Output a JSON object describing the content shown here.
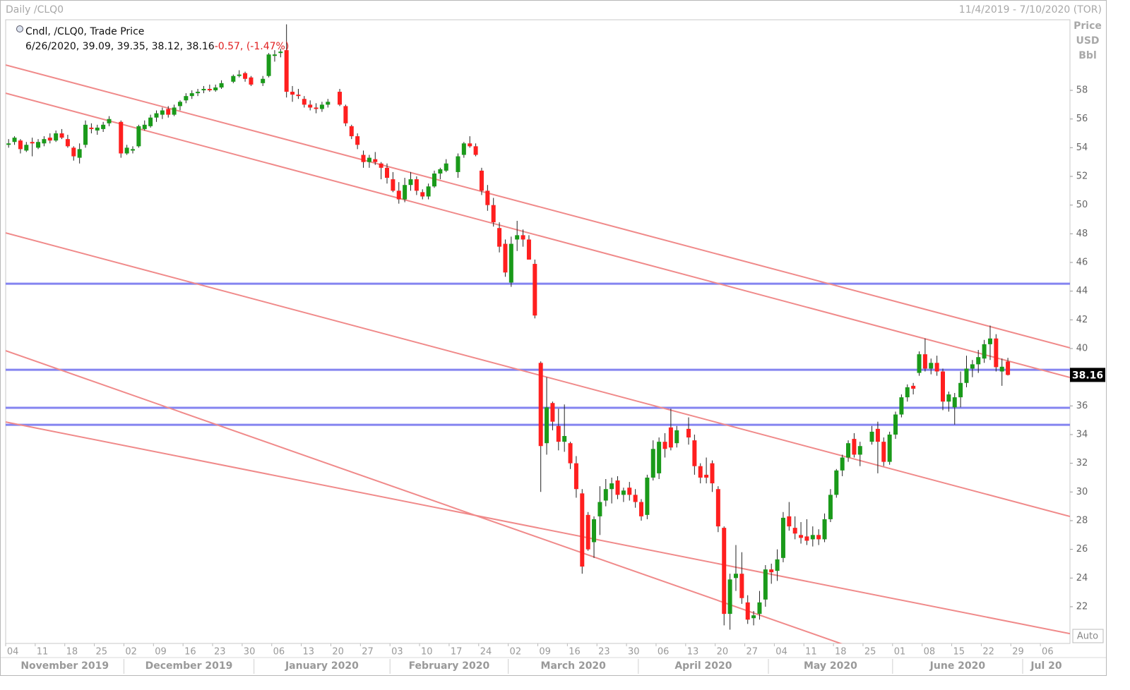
{
  "chart_data": {
    "type": "candlestick",
    "title": "Daily /CLQ0",
    "date_range": "11/4/2019 - 7/10/2020 (TOR)",
    "legend_title": "Cndl, /CLQ0, Trade Price",
    "legend_line": "6/26/2020, 39.09, 39.35, 38.12, 38.16",
    "change_label": "-0.57, (-1.47%)",
    "axis_label": [
      "Price",
      "USD",
      "Bbl"
    ],
    "auto_button": "Auto",
    "up_color": "#1a9a1a",
    "down_color": "#ff1f1f",
    "level_color": "#8484f0",
    "channel_color": "#f08a8a",
    "ylim": [
      19.44,
      62.92
    ],
    "yticks": [
      22,
      24,
      26,
      28,
      30,
      32,
      34,
      36,
      38,
      40,
      42,
      44,
      46,
      48,
      50,
      52,
      54,
      56,
      58
    ],
    "levels": [
      44.52,
      38.52,
      35.87,
      34.68
    ],
    "channel_lines": [
      [
        59.77,
        40.05
      ],
      [
        57.8,
        37.98
      ],
      [
        48.06,
        28.29
      ],
      [
        39.85,
        13.83
      ],
      [
        34.88,
        20.12
      ]
    ],
    "months": [
      "November 2019",
      "December 2019",
      "January 2020",
      "February 2020",
      "March 2020",
      "April 2020",
      "May 2020",
      "June 2020",
      "Jul 20"
    ],
    "categories": [
      "04",
      null,
      null,
      null,
      null,
      "11",
      null,
      null,
      null,
      null,
      "18",
      null,
      null,
      null,
      null,
      "25",
      null,
      null,
      null,
      null,
      "02",
      null,
      null,
      null,
      null,
      "09",
      null,
      null,
      null,
      null,
      "16",
      null,
      null,
      null,
      null,
      "23",
      null,
      null,
      null,
      null,
      "30",
      null,
      null,
      null,
      null,
      "06",
      null,
      null,
      null,
      null,
      "13",
      null,
      null,
      null,
      null,
      "20",
      null,
      null,
      null,
      null,
      "27",
      null,
      null,
      null,
      null,
      "03",
      null,
      null,
      null,
      null,
      "10",
      null,
      null,
      null,
      null,
      "17",
      null,
      null,
      null,
      null,
      "24",
      null,
      null,
      null,
      null,
      "02",
      null,
      null,
      null,
      null,
      "09",
      null,
      null,
      null,
      null,
      "16",
      null,
      null,
      null,
      null,
      "23",
      null,
      null,
      null,
      null,
      "30",
      null,
      null,
      null,
      null,
      "06",
      null,
      null,
      null,
      null,
      "13",
      null,
      null,
      null,
      null,
      "20",
      null,
      null,
      null,
      null,
      "27",
      null,
      null,
      null,
      null,
      "04",
      null,
      null,
      null,
      null,
      "11",
      null,
      null,
      null,
      null,
      "18",
      null,
      null,
      null,
      null,
      "25",
      null,
      null,
      null,
      null,
      "01",
      null,
      null,
      null,
      null,
      "08",
      null,
      null,
      null,
      null,
      "15",
      null,
      null,
      null,
      null,
      "22",
      null,
      null,
      null,
      null,
      "29",
      null,
      null,
      null,
      null,
      "06",
      null,
      null,
      null,
      null
    ],
    "candles": [
      [
        54.2,
        54.6,
        54.0,
        54.3
      ],
      [
        54.4,
        54.8,
        54.2,
        54.7
      ],
      [
        54.5,
        54.6,
        53.6,
        53.9
      ],
      [
        53.8,
        54.4,
        53.7,
        54.2
      ],
      [
        54.4,
        54.7,
        53.4,
        54.3
      ],
      [
        54.0,
        54.6,
        53.9,
        54.4
      ],
      [
        54.3,
        54.8,
        54.1,
        54.6
      ],
      [
        54.7,
        55.0,
        54.3,
        54.5
      ],
      [
        54.5,
        55.2,
        54.4,
        55.0
      ],
      [
        55.0,
        55.3,
        54.6,
        54.7
      ],
      [
        54.6,
        54.9,
        54.0,
        54.1
      ],
      [
        54.0,
        54.1,
        53.1,
        53.4
      ],
      [
        53.3,
        54.3,
        52.9,
        53.9
      ],
      [
        54.2,
        55.9,
        54.0,
        55.6
      ],
      [
        55.4,
        55.7,
        55.0,
        55.3
      ],
      [
        55.2,
        55.6,
        54.9,
        55.4
      ],
      [
        55.3,
        55.8,
        55.1,
        55.6
      ],
      [
        55.7,
        56.2,
        55.5,
        56.0
      ],
      null,
      [
        55.8,
        55.9,
        53.3,
        53.6
      ],
      [
        53.6,
        54.2,
        53.5,
        54.0
      ],
      [
        53.8,
        54.1,
        53.6,
        53.9
      ],
      [
        54.1,
        55.6,
        54.0,
        55.5
      ],
      [
        55.3,
        55.9,
        55.2,
        55.6
      ],
      [
        55.5,
        56.3,
        55.4,
        56.1
      ],
      [
        56.1,
        56.6,
        55.8,
        56.4
      ],
      [
        56.3,
        56.8,
        56.0,
        56.6
      ],
      [
        56.7,
        56.9,
        56.1,
        56.3
      ],
      [
        56.3,
        57.0,
        56.2,
        56.8
      ],
      [
        56.9,
        57.3,
        56.6,
        57.2
      ],
      [
        57.3,
        57.8,
        57.1,
        57.6
      ],
      [
        57.6,
        58.0,
        57.4,
        57.8
      ],
      [
        57.8,
        58.1,
        57.6,
        57.9
      ],
      [
        58.0,
        58.3,
        57.8,
        58.1
      ],
      [
        58.1,
        58.4,
        57.9,
        58.0
      ],
      [
        58.0,
        58.4,
        57.9,
        58.2
      ],
      [
        58.2,
        58.7,
        58.1,
        58.5
      ],
      null,
      [
        58.6,
        59.1,
        58.5,
        59.0
      ],
      [
        59.0,
        59.4,
        58.9,
        59.1
      ],
      [
        59.2,
        59.3,
        58.6,
        58.8
      ],
      [
        58.9,
        59.0,
        58.3,
        58.4
      ],
      null,
      [
        58.5,
        59.0,
        58.3,
        58.8
      ],
      [
        59.0,
        60.6,
        58.9,
        60.5
      ],
      [
        60.4,
        60.8,
        60.0,
        60.5
      ],
      [
        60.6,
        60.9,
        60.3,
        60.7
      ],
      [
        60.8,
        62.6,
        57.5,
        57.9
      ],
      [
        57.9,
        58.3,
        57.2,
        57.7
      ],
      [
        57.7,
        58.1,
        57.4,
        57.6
      ],
      [
        57.4,
        57.6,
        56.8,
        57.0
      ],
      [
        57.0,
        57.3,
        56.6,
        56.8
      ],
      [
        56.8,
        57.1,
        56.4,
        56.7
      ],
      [
        56.7,
        57.2,
        56.5,
        57.0
      ],
      [
        57.0,
        57.4,
        56.8,
        57.2
      ],
      null,
      [
        57.9,
        58.1,
        56.9,
        57.0
      ],
      [
        56.9,
        57.0,
        55.5,
        55.7
      ],
      [
        55.5,
        55.6,
        54.6,
        54.8
      ],
      [
        54.8,
        55.0,
        53.9,
        54.2
      ],
      [
        53.5,
        53.8,
        52.6,
        53.0
      ],
      [
        53.0,
        53.5,
        52.6,
        53.3
      ],
      [
        53.2,
        53.7,
        52.8,
        53.0
      ],
      [
        52.9,
        53.0,
        51.8,
        52.6
      ],
      [
        52.6,
        52.9,
        51.5,
        51.9
      ],
      [
        51.8,
        52.3,
        50.9,
        51.0
      ],
      [
        51.0,
        51.6,
        50.1,
        50.4
      ],
      [
        50.4,
        51.9,
        50.2,
        51.4
      ],
      [
        51.4,
        52.3,
        51.0,
        51.8
      ],
      [
        51.8,
        52.0,
        50.7,
        51.0
      ],
      [
        50.9,
        51.1,
        50.4,
        50.6
      ],
      [
        50.6,
        51.5,
        50.4,
        51.3
      ],
      [
        51.3,
        52.4,
        51.2,
        52.2
      ],
      [
        52.2,
        52.6,
        51.8,
        52.5
      ],
      [
        52.4,
        53.2,
        52.3,
        52.9
      ],
      null,
      [
        52.3,
        53.6,
        51.9,
        53.4
      ],
      [
        53.5,
        54.4,
        53.3,
        54.3
      ],
      [
        54.3,
        54.8,
        54.0,
        54.1
      ],
      [
        54.1,
        54.3,
        53.4,
        53.5
      ],
      [
        52.4,
        52.6,
        50.7,
        51.0
      ],
      [
        51.0,
        51.4,
        49.6,
        50.0
      ],
      [
        50.0,
        50.5,
        48.5,
        48.8
      ],
      [
        48.4,
        48.8,
        46.7,
        47.1
      ],
      [
        47.3,
        47.6,
        45.0,
        45.3
      ],
      [
        44.6,
        47.8,
        44.3,
        47.3
      ],
      [
        47.6,
        48.9,
        46.8,
        47.9
      ],
      [
        47.9,
        48.3,
        47.1,
        47.6
      ],
      [
        47.6,
        47.9,
        46.2,
        46.2
      ],
      [
        45.9,
        46.2,
        42.1,
        42.3
      ],
      [
        39.0,
        39.1,
        30.0,
        33.2
      ],
      [
        33.4,
        38.0,
        32.6,
        35.9
      ],
      [
        36.2,
        36.3,
        34.3,
        34.9
      ],
      [
        34.6,
        35.8,
        32.9,
        33.5
      ],
      [
        33.5,
        36.1,
        32.8,
        33.9
      ],
      [
        33.4,
        33.5,
        31.6,
        32.0
      ],
      [
        32.0,
        32.5,
        29.6,
        30.2
      ],
      [
        29.9,
        30.2,
        24.3,
        24.8
      ],
      [
        28.4,
        28.6,
        25.9,
        26.0
      ],
      [
        26.5,
        28.3,
        25.4,
        28.1
      ],
      [
        28.3,
        30.4,
        27.0,
        29.3
      ],
      [
        29.4,
        30.9,
        29.0,
        30.2
      ],
      [
        30.2,
        31.0,
        29.2,
        30.6
      ],
      [
        30.8,
        31.1,
        29.5,
        29.8
      ],
      [
        29.8,
        30.3,
        29.3,
        30.1
      ],
      [
        30.3,
        30.7,
        29.4,
        29.8
      ],
      [
        29.8,
        30.2,
        28.9,
        29.3
      ],
      [
        29.3,
        29.5,
        28.0,
        28.3
      ],
      [
        28.4,
        31.2,
        28.1,
        31.0
      ],
      [
        31.0,
        33.6,
        30.8,
        33.0
      ],
      [
        31.3,
        33.8,
        30.9,
        33.5
      ],
      [
        33.5,
        34.1,
        32.4,
        33.0
      ],
      [
        34.5,
        35.8,
        32.9,
        33.1
      ],
      [
        33.4,
        34.6,
        33.1,
        34.3
      ],
      null,
      [
        34.4,
        35.2,
        33.3,
        33.8
      ],
      [
        33.6,
        34.0,
        31.2,
        31.8
      ],
      [
        31.8,
        32.0,
        30.6,
        31.0
      ],
      [
        31.2,
        32.4,
        30.6,
        31.0
      ],
      [
        32.0,
        32.2,
        30.0,
        30.6
      ],
      [
        30.2,
        30.4,
        27.2,
        27.6
      ],
      [
        27.5,
        27.6,
        20.7,
        21.5
      ],
      [
        21.5,
        24.3,
        20.4,
        23.9
      ],
      [
        24.0,
        26.3,
        23.1,
        24.3
      ],
      [
        24.3,
        25.8,
        22.2,
        22.6
      ],
      [
        22.3,
        22.8,
        20.8,
        21.1
      ],
      [
        21.2,
        21.7,
        20.7,
        21.4
      ],
      [
        21.5,
        23.1,
        21.1,
        22.3
      ],
      [
        22.5,
        24.9,
        22.0,
        24.6
      ],
      [
        24.6,
        25.0,
        23.6,
        24.4
      ],
      [
        24.5,
        26.0,
        23.8,
        25.3
      ],
      [
        25.4,
        28.6,
        25.1,
        28.2
      ],
      [
        28.3,
        29.3,
        27.3,
        27.6
      ],
      [
        27.5,
        28.3,
        26.7,
        27.1
      ],
      [
        27.0,
        27.9,
        26.4,
        26.8
      ],
      [
        26.9,
        28.1,
        26.3,
        26.6
      ],
      [
        26.7,
        27.6,
        26.2,
        27.0
      ],
      [
        27.0,
        27.4,
        26.3,
        26.7
      ],
      [
        26.7,
        28.5,
        26.5,
        28.1
      ],
      [
        28.1,
        30.2,
        27.9,
        29.8
      ],
      [
        29.8,
        31.6,
        29.6,
        31.5
      ],
      [
        31.5,
        32.6,
        31.1,
        32.4
      ],
      [
        32.4,
        33.6,
        32.1,
        33.4
      ],
      [
        33.7,
        34.1,
        32.4,
        32.6
      ],
      [
        32.6,
        33.5,
        31.8,
        33.2
      ],
      null,
      [
        33.5,
        34.6,
        33.3,
        34.2
      ],
      [
        34.4,
        34.9,
        31.3,
        33.5
      ],
      [
        33.5,
        33.8,
        31.8,
        32.1
      ],
      [
        32.1,
        34.2,
        31.9,
        34.0
      ],
      [
        34.0,
        35.6,
        33.7,
        35.4
      ],
      [
        35.4,
        36.8,
        35.2,
        36.6
      ],
      [
        36.6,
        37.5,
        36.3,
        37.3
      ],
      [
        37.4,
        37.6,
        36.8,
        37.2
      ],
      [
        38.3,
        39.8,
        38.1,
        39.6
      ],
      [
        39.6,
        40.7,
        38.4,
        38.6
      ],
      [
        38.6,
        39.3,
        38.2,
        39.0
      ],
      [
        39.0,
        39.5,
        38.1,
        38.4
      ],
      [
        38.4,
        38.6,
        35.7,
        36.3
      ],
      [
        36.3,
        37.0,
        35.6,
        36.8
      ],
      [
        35.9,
        36.9,
        34.7,
        36.6
      ],
      [
        36.6,
        38.4,
        35.9,
        37.6
      ],
      [
        37.6,
        39.5,
        37.3,
        38.6
      ],
      [
        38.6,
        39.2,
        38.0,
        38.9
      ],
      [
        38.9,
        39.9,
        38.3,
        39.4
      ],
      [
        39.3,
        40.6,
        39.0,
        40.3
      ],
      [
        40.3,
        41.6,
        39.2,
        40.7
      ],
      [
        40.7,
        41.0,
        38.4,
        38.7
      ],
      [
        38.4,
        39.3,
        37.4,
        38.73
      ],
      [
        39.09,
        39.35,
        38.12,
        38.16
      ],
      null,
      null,
      null,
      null,
      null,
      null,
      null,
      null,
      null,
      null
    ]
  }
}
